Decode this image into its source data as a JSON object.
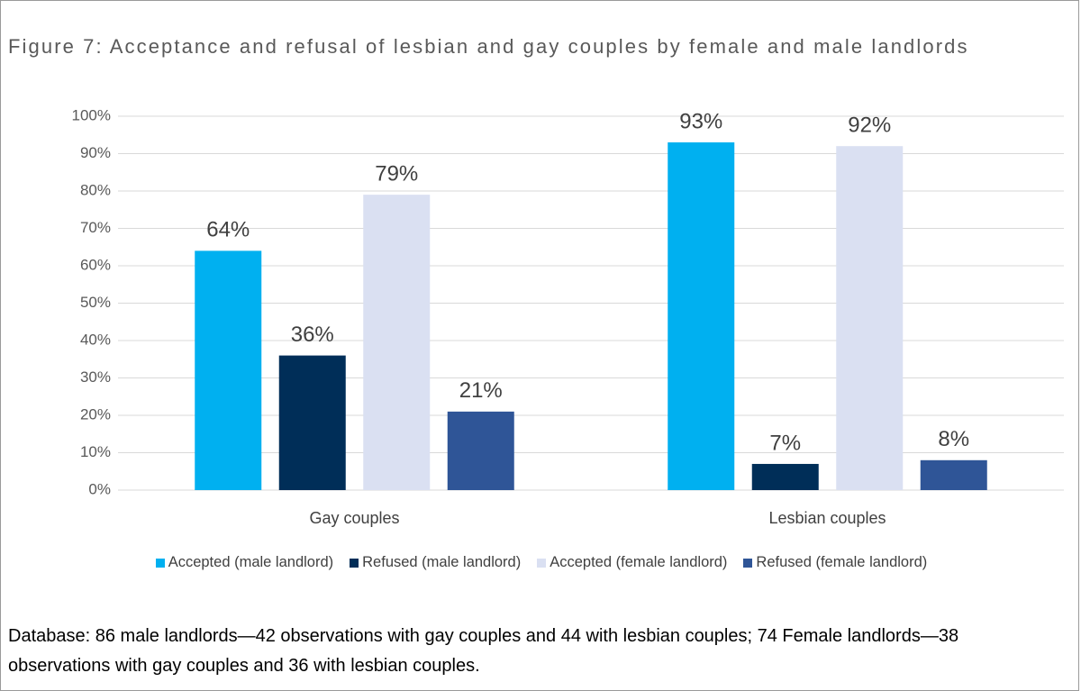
{
  "chart_data": {
    "type": "bar",
    "title": "Figure 7: Acceptance and refusal of lesbian and gay couples by female and male landlords",
    "categories": [
      "Gay couples",
      "Lesbian couples"
    ],
    "series": [
      {
        "name": "Accepted (male landlord)",
        "color": "#00b0f0",
        "values": [
          64,
          93
        ],
        "value_labels": [
          "64%",
          "93%"
        ]
      },
      {
        "name": "Refused (male landlord)",
        "color": "#002e58",
        "values": [
          36,
          7
        ],
        "value_labels": [
          "36%",
          "7%"
        ]
      },
      {
        "name": "Accepted (female landlord)",
        "color": "#dae0f2",
        "values": [
          79,
          92
        ],
        "value_labels": [
          "79%",
          "92%"
        ]
      },
      {
        "name": "Refused (female landlord)",
        "color": "#2f5597",
        "values": [
          21,
          8
        ],
        "value_labels": [
          "21%",
          "8%"
        ]
      }
    ],
    "ylim": [
      0,
      100
    ],
    "yticks": [
      {
        "value": 0,
        "label": "0%"
      },
      {
        "value": 10,
        "label": "10%"
      },
      {
        "value": 20,
        "label": "20%"
      },
      {
        "value": 30,
        "label": "30%"
      },
      {
        "value": 40,
        "label": "40%"
      },
      {
        "value": 50,
        "label": "50%"
      },
      {
        "value": 60,
        "label": "60%"
      },
      {
        "value": 70,
        "label": "70%"
      },
      {
        "value": 80,
        "label": "80%"
      },
      {
        "value": 90,
        "label": "90%"
      },
      {
        "value": 100,
        "label": "100%"
      }
    ],
    "grid": true,
    "legend": "bottom",
    "note": "Database: 86 male landlords—42 observations with gay couples and 44 with lesbian couples; 74 Female landlords—38 observations with gay couples and 36 with lesbian couples."
  }
}
